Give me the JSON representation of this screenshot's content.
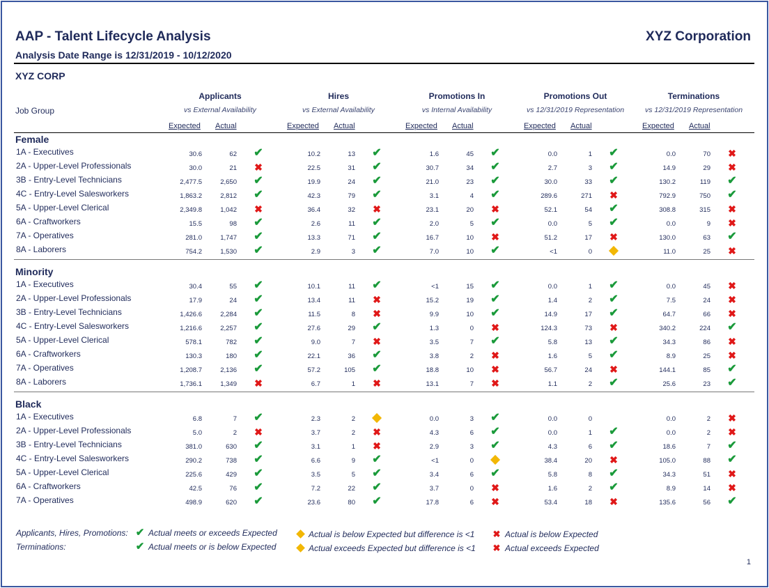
{
  "header": {
    "title": "AAP - Talent Lifecycle Analysis",
    "company": "XYZ Corporation",
    "date_range": "Analysis Date Range is 12/31/2019 - 10/12/2020",
    "corp": "XYZ CORP"
  },
  "columns": {
    "job_group_label": "Job Group",
    "expected_label": "Expected",
    "actual_label": "Actual",
    "groups": [
      {
        "title": "Applicants",
        "subtitle": "vs External Availability"
      },
      {
        "title": "Hires",
        "subtitle": "vs External Availability"
      },
      {
        "title": "Promotions In",
        "subtitle": "vs Internal Availability"
      },
      {
        "title": "Promotions Out",
        "subtitle": "vs 12/31/2019 Representation"
      },
      {
        "title": "Terminations",
        "subtitle": "vs 12/31/2019 Representation"
      }
    ]
  },
  "sections": [
    {
      "name": "Female",
      "rows": [
        {
          "label": "1A - Executives",
          "cells": [
            [
              "30.6",
              "62",
              "check"
            ],
            [
              "10.2",
              "13",
              "check"
            ],
            [
              "1.6",
              "45",
              "check"
            ],
            [
              "0.0",
              "1",
              "check"
            ],
            [
              "0.0",
              "70",
              "cross"
            ]
          ]
        },
        {
          "label": "2A - Upper-Level Professionals",
          "cells": [
            [
              "30.0",
              "21",
              "cross"
            ],
            [
              "22.5",
              "31",
              "check"
            ],
            [
              "30.7",
              "34",
              "check"
            ],
            [
              "2.7",
              "3",
              "check"
            ],
            [
              "14.9",
              "29",
              "cross"
            ]
          ]
        },
        {
          "label": "3B - Entry-Level Technicians",
          "cells": [
            [
              "2,477.5",
              "2,650",
              "check"
            ],
            [
              "19.9",
              "24",
              "check"
            ],
            [
              "21.0",
              "23",
              "check"
            ],
            [
              "30.0",
              "33",
              "check"
            ],
            [
              "130.2",
              "119",
              "check"
            ]
          ]
        },
        {
          "label": "4C - Entry-Level Salesworkers",
          "cells": [
            [
              "1,863.2",
              "2,812",
              "check"
            ],
            [
              "42.3",
              "79",
              "check"
            ],
            [
              "3.1",
              "4",
              "check"
            ],
            [
              "289.6",
              "271",
              "cross"
            ],
            [
              "792.9",
              "750",
              "check"
            ]
          ]
        },
        {
          "label": "5A - Upper-Level Clerical",
          "cells": [
            [
              "2,349.8",
              "1,042",
              "cross"
            ],
            [
              "36.4",
              "32",
              "cross"
            ],
            [
              "23.1",
              "20",
              "cross"
            ],
            [
              "52.1",
              "54",
              "check"
            ],
            [
              "308.8",
              "315",
              "cross"
            ]
          ]
        },
        {
          "label": "6A - Craftworkers",
          "cells": [
            [
              "15.5",
              "98",
              "check"
            ],
            [
              "2.6",
              "11",
              "check"
            ],
            [
              "2.0",
              "5",
              "check"
            ],
            [
              "0.0",
              "5",
              "check"
            ],
            [
              "0.0",
              "9",
              "cross"
            ]
          ]
        },
        {
          "label": "7A - Operatives",
          "cells": [
            [
              "281.0",
              "1,747",
              "check"
            ],
            [
              "13.3",
              "71",
              "check"
            ],
            [
              "16.7",
              "10",
              "cross"
            ],
            [
              "51.2",
              "17",
              "cross"
            ],
            [
              "130.0",
              "63",
              "check"
            ]
          ]
        },
        {
          "label": "8A - Laborers",
          "cells": [
            [
              "754.2",
              "1,530",
              "check"
            ],
            [
              "2.9",
              "3",
              "check"
            ],
            [
              "7.0",
              "10",
              "check"
            ],
            [
              "<1",
              "0",
              "diamond"
            ],
            [
              "11.0",
              "25",
              "cross"
            ]
          ]
        }
      ]
    },
    {
      "name": "Minority",
      "rows": [
        {
          "label": "1A - Executives",
          "cells": [
            [
              "30.4",
              "55",
              "check"
            ],
            [
              "10.1",
              "11",
              "check"
            ],
            [
              "<1",
              "15",
              "check"
            ],
            [
              "0.0",
              "1",
              "check"
            ],
            [
              "0.0",
              "45",
              "cross"
            ]
          ]
        },
        {
          "label": "2A - Upper-Level Professionals",
          "cells": [
            [
              "17.9",
              "24",
              "check"
            ],
            [
              "13.4",
              "11",
              "cross"
            ],
            [
              "15.2",
              "19",
              "check"
            ],
            [
              "1.4",
              "2",
              "check"
            ],
            [
              "7.5",
              "24",
              "cross"
            ]
          ]
        },
        {
          "label": "3B - Entry-Level Technicians",
          "cells": [
            [
              "1,426.6",
              "2,284",
              "check"
            ],
            [
              "11.5",
              "8",
              "cross"
            ],
            [
              "9.9",
              "10",
              "check"
            ],
            [
              "14.9",
              "17",
              "check"
            ],
            [
              "64.7",
              "66",
              "cross"
            ]
          ]
        },
        {
          "label": "4C - Entry-Level Salesworkers",
          "cells": [
            [
              "1,216.6",
              "2,257",
              "check"
            ],
            [
              "27.6",
              "29",
              "check"
            ],
            [
              "1.3",
              "0",
              "cross"
            ],
            [
              "124.3",
              "73",
              "cross"
            ],
            [
              "340.2",
              "224",
              "check"
            ]
          ]
        },
        {
          "label": "5A - Upper-Level Clerical",
          "cells": [
            [
              "578.1",
              "782",
              "check"
            ],
            [
              "9.0",
              "7",
              "cross"
            ],
            [
              "3.5",
              "7",
              "check"
            ],
            [
              "5.8",
              "13",
              "check"
            ],
            [
              "34.3",
              "86",
              "cross"
            ]
          ]
        },
        {
          "label": "6A - Craftworkers",
          "cells": [
            [
              "130.3",
              "180",
              "check"
            ],
            [
              "22.1",
              "36",
              "check"
            ],
            [
              "3.8",
              "2",
              "cross"
            ],
            [
              "1.6",
              "5",
              "check"
            ],
            [
              "8.9",
              "25",
              "cross"
            ]
          ]
        },
        {
          "label": "7A - Operatives",
          "cells": [
            [
              "1,208.7",
              "2,136",
              "check"
            ],
            [
              "57.2",
              "105",
              "check"
            ],
            [
              "18.8",
              "10",
              "cross"
            ],
            [
              "56.7",
              "24",
              "cross"
            ],
            [
              "144.1",
              "85",
              "check"
            ]
          ]
        },
        {
          "label": "8A - Laborers",
          "cells": [
            [
              "1,736.1",
              "1,349",
              "cross"
            ],
            [
              "6.7",
              "1",
              "cross"
            ],
            [
              "13.1",
              "7",
              "cross"
            ],
            [
              "1.1",
              "2",
              "check"
            ],
            [
              "25.6",
              "23",
              "check"
            ]
          ]
        }
      ]
    },
    {
      "name": "Black",
      "rows": [
        {
          "label": "1A - Executives",
          "cells": [
            [
              "6.8",
              "7",
              "check"
            ],
            [
              "2.3",
              "2",
              "diamond"
            ],
            [
              "0.0",
              "3",
              "check"
            ],
            [
              "0.0",
              "0",
              ""
            ],
            [
              "0.0",
              "2",
              "cross"
            ]
          ]
        },
        {
          "label": "2A - Upper-Level Professionals",
          "cells": [
            [
              "5.0",
              "2",
              "cross"
            ],
            [
              "3.7",
              "2",
              "cross"
            ],
            [
              "4.3",
              "6",
              "check"
            ],
            [
              "0.0",
              "1",
              "check"
            ],
            [
              "0.0",
              "2",
              "cross"
            ]
          ]
        },
        {
          "label": "3B - Entry-Level Technicians",
          "cells": [
            [
              "381.0",
              "630",
              "check"
            ],
            [
              "3.1",
              "1",
              "cross"
            ],
            [
              "2.9",
              "3",
              "check"
            ],
            [
              "4.3",
              "6",
              "check"
            ],
            [
              "18.6",
              "7",
              "check"
            ]
          ]
        },
        {
          "label": "4C - Entry-Level Salesworkers",
          "cells": [
            [
              "290.2",
              "738",
              "check"
            ],
            [
              "6.6",
              "9",
              "check"
            ],
            [
              "<1",
              "0",
              "diamond"
            ],
            [
              "38.4",
              "20",
              "cross"
            ],
            [
              "105.0",
              "88",
              "check"
            ]
          ]
        },
        {
          "label": "5A - Upper-Level Clerical",
          "cells": [
            [
              "225.6",
              "429",
              "check"
            ],
            [
              "3.5",
              "5",
              "check"
            ],
            [
              "3.4",
              "6",
              "check"
            ],
            [
              "5.8",
              "8",
              "check"
            ],
            [
              "34.3",
              "51",
              "cross"
            ]
          ]
        },
        {
          "label": "6A - Craftworkers",
          "cells": [
            [
              "42.5",
              "76",
              "check"
            ],
            [
              "7.2",
              "22",
              "check"
            ],
            [
              "3.7",
              "0",
              "cross"
            ],
            [
              "1.6",
              "2",
              "check"
            ],
            [
              "8.9",
              "14",
              "cross"
            ]
          ]
        },
        {
          "label": "7A - Operatives",
          "cells": [
            [
              "498.9",
              "620",
              "check"
            ],
            [
              "23.6",
              "80",
              "check"
            ],
            [
              "17.8",
              "6",
              "cross"
            ],
            [
              "53.4",
              "18",
              "cross"
            ],
            [
              "135.6",
              "56",
              "check"
            ]
          ]
        }
      ]
    }
  ],
  "legend": {
    "row1_label": "Applicants, Hires, Promotions:",
    "row2_label": "Terminations:",
    "row1": [
      {
        "icon": "check",
        "text": "Actual meets or exceeds Expected"
      },
      {
        "icon": "diamond",
        "text": "Actual is below Expected but difference is <1"
      },
      {
        "icon": "cross",
        "text": "Actual is below Expected"
      }
    ],
    "row2": [
      {
        "icon": "check",
        "text": "Actual meets or is below Expected"
      },
      {
        "icon": "diamond",
        "text": "Actual exceeds Expected but difference is <1"
      },
      {
        "icon": "cross",
        "text": "Actual exceeds Expected"
      }
    ]
  },
  "colors": {
    "check": "#1a9a3a",
    "cross": "#e01818",
    "diamond": "#f2b705",
    "text": "#1f2a5a"
  },
  "page_number": "1"
}
